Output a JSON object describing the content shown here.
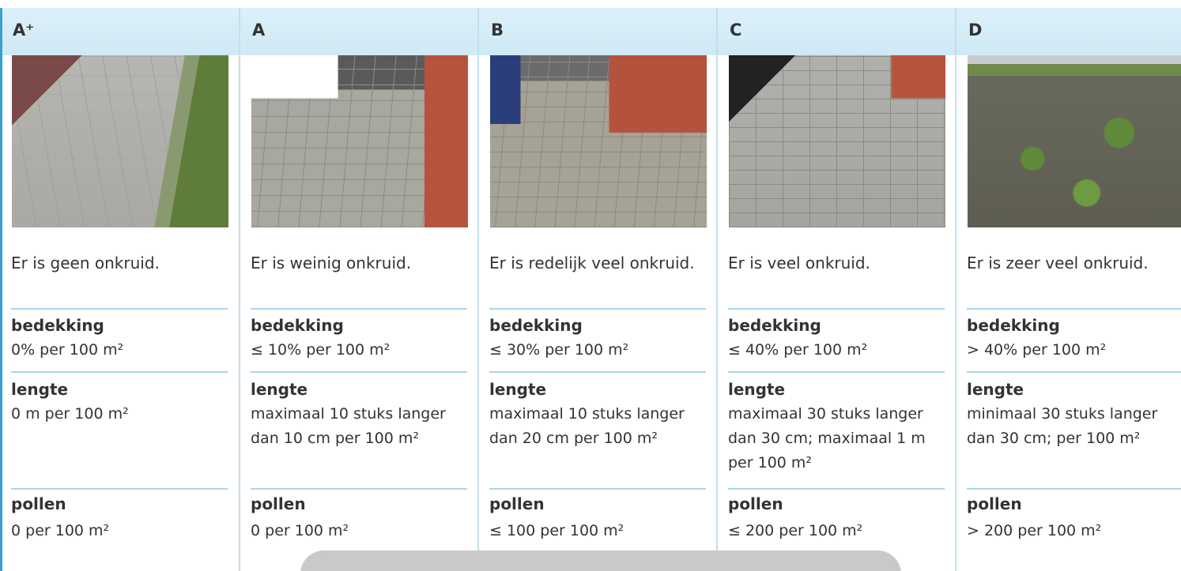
{
  "columns": [
    {
      "header": "A⁺",
      "description": "Er is geen onkruid.",
      "bedekking": {
        "label": "bedekking",
        "value": "0% per 100 m²"
      },
      "lengte": {
        "label": "lengte",
        "value": "0 m per 100 m²"
      },
      "pollen": {
        "label": "pollen",
        "value": "0 per 100 m²"
      }
    },
    {
      "header": "A",
      "description": "Er is weinig onkruid.",
      "bedekking": {
        "label": "bedekking",
        "value": "≤ 10% per 100 m²"
      },
      "lengte": {
        "label": "lengte",
        "value": "maximaal 10 stuks langer dan 10 cm per 100 m²"
      },
      "pollen": {
        "label": "pollen",
        "value": "0 per 100 m²"
      }
    },
    {
      "header": "B",
      "description": "Er is redelijk veel onkruid.",
      "bedekking": {
        "label": "bedekking",
        "value": "≤ 30% per 100 m²"
      },
      "lengte": {
        "label": "lengte",
        "value": "maximaal 10 stuks langer dan 20 cm per 100 m²"
      },
      "pollen": {
        "label": "pollen",
        "value": "≤ 100 per 100 m²"
      }
    },
    {
      "header": "C",
      "description": "Er is veel onkruid.",
      "bedekking": {
        "label": "bedekking",
        "value": "≤ 40% per 100 m²"
      },
      "lengte": {
        "label": "lengte",
        "value": "maximaal 30 stuks langer dan 30 cm; maximaal 1 m per 100 m²"
      },
      "pollen": {
        "label": "pollen",
        "value": "≤ 200 per 100 m²"
      }
    },
    {
      "header": "D",
      "description": "Er is zeer veel onkruid.",
      "bedekking": {
        "label": "bedekking",
        "value": "> 40% per 100 m²"
      },
      "lengte": {
        "label": "lengte",
        "value": "minimaal 30 stuks langer dan 30 cm; per 100 m²"
      },
      "pollen": {
        "label": "pollen",
        "value": "> 200 per 100 m²"
      }
    }
  ]
}
